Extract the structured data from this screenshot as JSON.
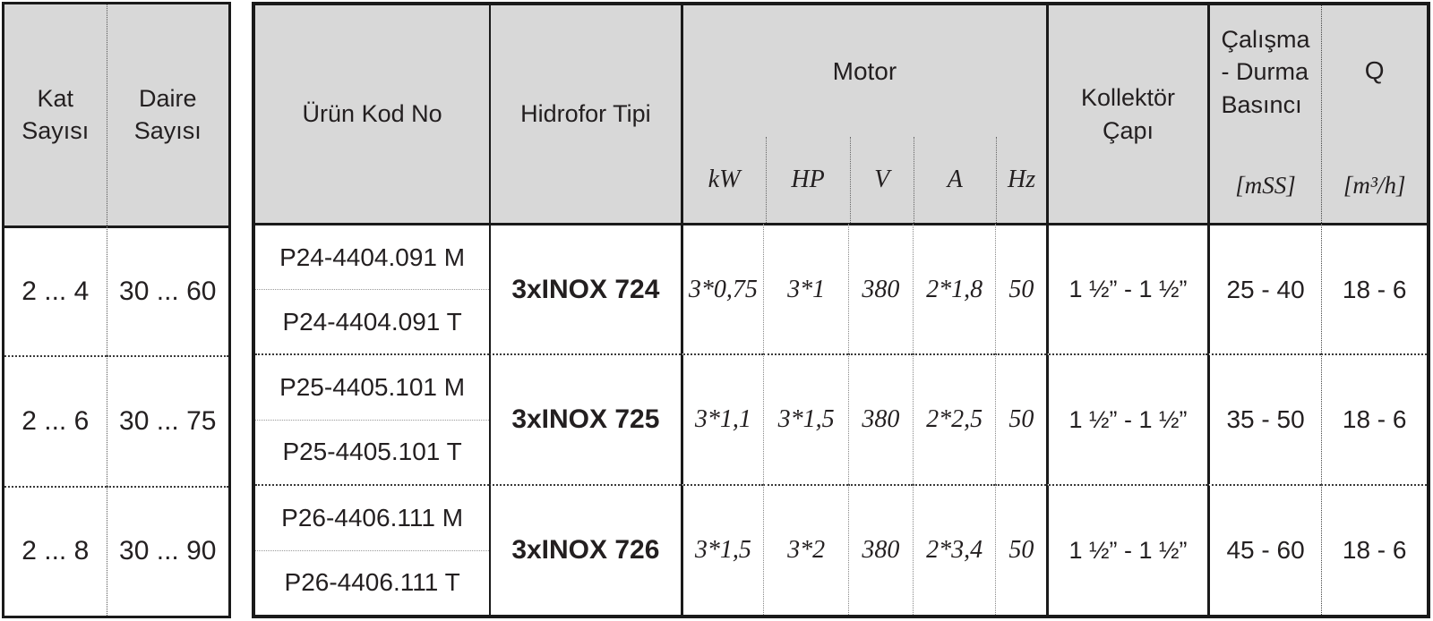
{
  "colors": {
    "header_bg": "#d8d8d8",
    "border": "#1a1a1a",
    "text": "#231f20"
  },
  "left_table": {
    "headers": {
      "kat": "Kat\nSayısı",
      "daire": "Daire\nSayısı"
    },
    "rows": [
      {
        "kat": "2 ... 4",
        "daire": "30 ... 60"
      },
      {
        "kat": "2 ... 6",
        "daire": "30 ... 75"
      },
      {
        "kat": "2 ... 8",
        "daire": "30 ... 90"
      }
    ]
  },
  "main_table": {
    "headers": {
      "urun_kod_no": "Ürün Kod No",
      "hidrofor_tipi": "Hidrofor Tipi",
      "motor": "Motor",
      "kollektor_capi": "Kollektör\nÇapı",
      "calisma_durma": "Çalışma\n- Durma\nBasıncı",
      "q": "Q"
    },
    "motor_units": [
      "kW",
      "HP",
      "V",
      "A",
      "Hz"
    ],
    "pressure_unit": "[mSS]",
    "q_unit": "[m³/h]",
    "groups": [
      {
        "codes": [
          "P24-4404.091 M",
          "P24-4404.091 T"
        ],
        "type": "3xINOX 724",
        "motor": [
          "3*0,75",
          "3*1",
          "380",
          "2*1,8",
          "50"
        ],
        "collector": "1 ½” - 1 ½”",
        "pressure": "25 - 40",
        "q": "18 - 6"
      },
      {
        "codes": [
          "P25-4405.101 M",
          "P25-4405.101 T"
        ],
        "type": "3xINOX 725",
        "motor": [
          "3*1,1",
          "3*1,5",
          "380",
          "2*2,5",
          "50"
        ],
        "collector": "1 ½” - 1 ½”",
        "pressure": "35 - 50",
        "q": "18 - 6"
      },
      {
        "codes": [
          "P26-4406.111 M",
          "P26-4406.111 T"
        ],
        "type": "3xINOX 726",
        "motor": [
          "3*1,5",
          "3*2",
          "380",
          "2*3,4",
          "50"
        ],
        "collector": "1 ½” - 1 ½”",
        "pressure": "45 - 60",
        "q": "18 - 6"
      }
    ]
  }
}
